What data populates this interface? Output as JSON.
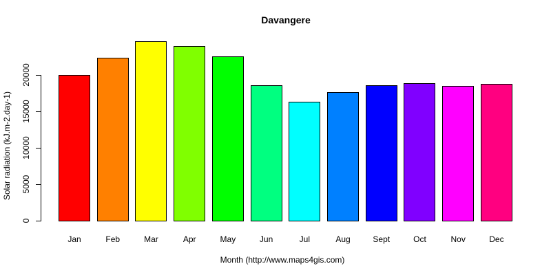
{
  "title": "Davangere",
  "chart_data": {
    "type": "bar",
    "title": "Davangere",
    "categories": [
      "Jan",
      "Feb",
      "Mar",
      "Apr",
      "May",
      "Jun",
      "Jul",
      "Aug",
      "Sept",
      "Oct",
      "Nov",
      "Dec"
    ],
    "values": [
      20100,
      22500,
      24700,
      24100,
      22600,
      18700,
      16400,
      17700,
      18700,
      19000,
      18600,
      18900
    ],
    "bar_colors": [
      "#FF0000",
      "#FF8000",
      "#FFFF00",
      "#80FF00",
      "#00FF00",
      "#00FF80",
      "#00FFFF",
      "#0080FF",
      "#0000FF",
      "#8000FF",
      "#FF00FF",
      "#FF0080"
    ],
    "bar_border_color": "#000000",
    "xlabel": "Month (http://www.maps4gis.com)",
    "ylabel": "Solar radiation (kJ.m-2.day-1)",
    "yticks": [
      0,
      5000,
      10000,
      15000,
      20000
    ],
    "ylim": [
      0,
      25000
    ],
    "grid": false,
    "legend_position": "none",
    "title_color": "#000000",
    "axis_text_color": "#000000"
  }
}
